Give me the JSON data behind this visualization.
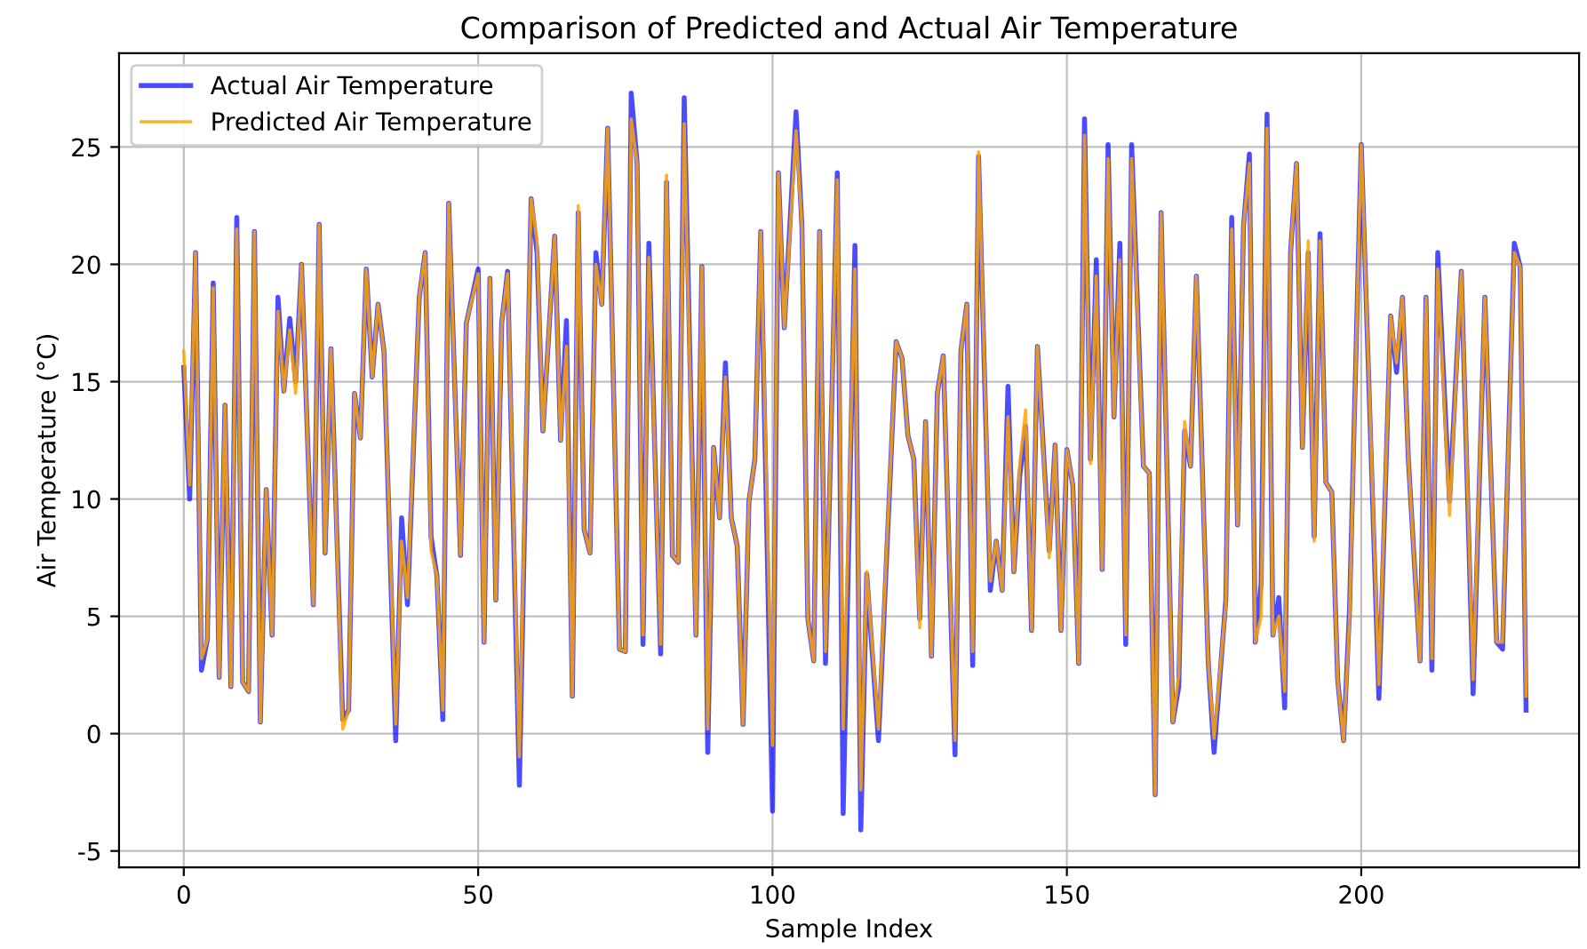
{
  "chart_data": {
    "type": "line",
    "title": "Comparison of Predicted and Actual Air Temperature",
    "xlabel": "Sample Index",
    "ylabel": "Air Temperature (°C)",
    "xlim": [
      -11,
      237
    ],
    "ylim": [
      -5.7,
      29.0
    ],
    "xticks": [
      0,
      50,
      100,
      150,
      200
    ],
    "yticks": [
      -5,
      0,
      5,
      10,
      15,
      20,
      25
    ],
    "grid": true,
    "legend": "top left",
    "line_style": "solid",
    "series": [
      {
        "name": "Actual Air Temperature",
        "color": "#0000ff",
        "x": [
          0,
          1,
          2,
          3,
          4,
          5,
          6,
          7,
          8,
          9,
          10,
          11,
          12,
          13,
          14,
          15,
          16,
          17,
          18,
          19,
          20,
          22,
          23,
          24,
          25,
          27,
          28,
          29,
          30,
          31,
          32,
          33,
          34,
          36,
          37,
          38,
          40,
          41,
          42,
          43,
          44,
          45,
          47,
          48,
          50,
          51,
          52,
          53,
          54,
          55,
          57,
          59,
          60,
          61,
          63,
          64,
          65,
          66,
          67,
          68,
          69,
          70,
          71,
          72,
          74,
          75,
          76,
          77,
          78,
          79,
          81,
          82,
          83,
          84,
          85,
          87,
          88,
          89,
          90,
          91,
          92,
          93,
          94,
          95,
          96,
          97,
          98,
          100,
          101,
          102,
          104,
          105,
          106,
          107,
          108,
          109,
          111,
          112,
          114,
          115,
          116,
          118,
          121,
          122,
          123,
          124,
          125,
          126,
          127,
          128,
          129,
          131,
          132,
          133,
          134,
          135,
          137,
          138,
          139,
          140,
          141,
          142,
          143,
          144,
          145,
          147,
          148,
          149,
          150,
          151,
          152,
          153,
          154,
          155,
          156,
          157,
          158,
          159,
          160,
          161,
          163,
          164,
          165,
          166,
          168,
          169,
          170,
          171,
          172,
          174,
          175,
          177,
          178,
          179,
          180,
          181,
          182,
          183,
          184,
          185,
          186,
          187,
          188,
          189,
          190,
          191,
          192,
          193,
          194,
          195,
          196,
          197,
          198,
          200,
          203,
          205,
          206,
          207,
          208,
          210,
          211,
          212,
          213,
          215,
          217,
          219,
          221,
          223,
          224,
          226,
          227,
          228
        ],
        "values": [
          15.6,
          10,
          20.5,
          2.7,
          4,
          19.2,
          2.4,
          14,
          2.0,
          22,
          2.2,
          1.8,
          21.4,
          0.5,
          10.4,
          4.2,
          18.6,
          14.6,
          17.7,
          15,
          20,
          5.5,
          21.7,
          7.7,
          16.4,
          0.6,
          1.0,
          14.5,
          12.6,
          19.8,
          15.2,
          18.3,
          16.3,
          -0.3,
          9.2,
          5.5,
          18.6,
          20.5,
          8.4,
          6.7,
          0.6,
          22.6,
          7.6,
          17.5,
          19.8,
          3.9,
          19.4,
          5.7,
          17.5,
          19.7,
          -2.2,
          22.8,
          20.5,
          12.9,
          21.2,
          12.5,
          17.6,
          1.6,
          22.2,
          8.7,
          7.7,
          20.5,
          18.3,
          25.8,
          3.6,
          3.5,
          27.3,
          24.3,
          3.8,
          20.9,
          3.4,
          23.5,
          7.6,
          7.3,
          27.1,
          4.2,
          19.9,
          -0.8,
          12.2,
          9.2,
          15.8,
          9.2,
          8.0,
          0.4,
          9.9,
          11.7,
          21.4,
          -3.3,
          23.9,
          17.3,
          26.5,
          21.6,
          4.9,
          3.1,
          21.4,
          3.0,
          23.9,
          -3.4,
          20.8,
          -4.1,
          6.8,
          -0.3,
          16.7,
          16.0,
          12.7,
          11.7,
          4.9,
          13.3,
          3.3,
          14.5,
          16.1,
          -0.9,
          16.3,
          18.3,
          2.9,
          24.6,
          6.1,
          8.2,
          6.1,
          14.8,
          6.9,
          11.0,
          13.1,
          4.4,
          16.5,
          7.8,
          12.3,
          4.4,
          12.1,
          10.6,
          3.0,
          26.2,
          11.7,
          20.2,
          7.0,
          25.1,
          13.5,
          20.9,
          3.8,
          25.1,
          11.4,
          11.1,
          -2.6,
          22.2,
          0.5,
          2.0,
          12.9,
          11.4,
          19.5,
          3.1,
          -0.8,
          5.7,
          22.0,
          8.9,
          21.6,
          24.7,
          3.9,
          6.4,
          26.4,
          4.2,
          5.8,
          1.1,
          20.5,
          24.3,
          12.2,
          20.5,
          8.4,
          21.3,
          10.7,
          10.3,
          2.3,
          -0.3,
          5.2,
          25.1,
          1.5,
          17.8,
          15.4,
          18.6,
          11.7,
          3.1,
          18.6,
          2.7,
          20.5,
          9.9,
          19.7,
          1.7,
          18.6,
          3.9,
          3.6,
          20.9,
          19.9,
          1.0
        ]
      },
      {
        "name": "Predicted Air Temperature",
        "color": "#ffa500",
        "x": [
          0,
          1,
          2,
          3,
          4,
          5,
          6,
          7,
          8,
          9,
          10,
          11,
          12,
          13,
          14,
          15,
          16,
          17,
          18,
          19,
          20,
          22,
          23,
          24,
          25,
          27,
          28,
          29,
          30,
          31,
          32,
          33,
          34,
          36,
          37,
          38,
          40,
          41,
          42,
          43,
          44,
          45,
          47,
          48,
          50,
          51,
          52,
          53,
          54,
          55,
          57,
          59,
          60,
          61,
          63,
          64,
          65,
          66,
          67,
          68,
          69,
          70,
          71,
          72,
          74,
          75,
          76,
          77,
          78,
          79,
          81,
          82,
          83,
          84,
          85,
          87,
          88,
          89,
          90,
          91,
          92,
          93,
          94,
          95,
          96,
          97,
          98,
          100,
          101,
          102,
          104,
          105,
          106,
          107,
          108,
          109,
          111,
          112,
          114,
          115,
          116,
          118,
          121,
          122,
          123,
          124,
          125,
          126,
          127,
          128,
          129,
          131,
          132,
          133,
          134,
          135,
          137,
          138,
          139,
          140,
          141,
          142,
          143,
          144,
          145,
          147,
          148,
          149,
          150,
          151,
          152,
          153,
          154,
          155,
          156,
          157,
          158,
          159,
          160,
          161,
          163,
          164,
          165,
          166,
          168,
          169,
          170,
          171,
          172,
          174,
          175,
          177,
          178,
          179,
          180,
          181,
          182,
          183,
          184,
          185,
          186,
          187,
          188,
          189,
          190,
          191,
          192,
          193,
          194,
          195,
          196,
          197,
          198,
          200,
          203,
          205,
          206,
          207,
          208,
          210,
          211,
          212,
          213,
          215,
          217,
          219,
          221,
          223,
          224,
          226,
          227,
          228
        ],
        "values": [
          16.3,
          10.6,
          20.5,
          3.2,
          4,
          19.0,
          2.4,
          14,
          2.0,
          21.5,
          2.2,
          1.8,
          21.4,
          0.5,
          10.4,
          4.2,
          18.0,
          14.6,
          17.2,
          14.5,
          20,
          5.5,
          21.7,
          7.7,
          16.4,
          0.2,
          1.0,
          14.5,
          12.6,
          19.8,
          15.2,
          18.3,
          16.3,
          0.4,
          8.2,
          5.8,
          18.6,
          20.5,
          7.8,
          6.7,
          1.0,
          22.6,
          7.6,
          17.5,
          19.6,
          3.9,
          19.4,
          5.7,
          17.5,
          19.6,
          -1.0,
          22.8,
          21.0,
          12.9,
          21.2,
          12.5,
          16.5,
          1.6,
          22.5,
          8.7,
          7.7,
          20.0,
          18.3,
          25.8,
          3.6,
          3.5,
          26.2,
          24.3,
          4.2,
          20.3,
          3.8,
          23.8,
          7.6,
          7.3,
          26.0,
          4.2,
          19.9,
          0.2,
          12.2,
          9.2,
          15.2,
          9.2,
          8.0,
          0.4,
          9.9,
          11.7,
          21.4,
          -0.5,
          23.9,
          17.3,
          25.7,
          21.6,
          4.9,
          3.1,
          21.4,
          3.5,
          23.6,
          0.2,
          19.8,
          -2.4,
          6.9,
          0.2,
          16.7,
          16.0,
          12.7,
          11.7,
          4.5,
          13.3,
          3.3,
          14.5,
          16.1,
          -0.3,
          16.3,
          18.3,
          3.5,
          24.8,
          6.5,
          8.2,
          6.1,
          13.5,
          6.9,
          11.5,
          13.8,
          4.4,
          16.5,
          7.5,
          12.3,
          4.4,
          12.1,
          10.6,
          3.0,
          25.5,
          11.5,
          19.5,
          7.0,
          24.5,
          13.5,
          20.2,
          4.2,
          24.5,
          11.4,
          11.1,
          -2.6,
          22.2,
          0.5,
          2.5,
          13.3,
          11.4,
          19.5,
          3.1,
          -0.2,
          5.5,
          21.5,
          8.9,
          21.6,
          24.3,
          3.9,
          5.0,
          25.8,
          4.2,
          5.0,
          1.8,
          20.5,
          24.3,
          12.2,
          21.0,
          8.2,
          21.0,
          10.7,
          10.3,
          2.3,
          -0.3,
          4.8,
          25.1,
          2.1,
          17.8,
          15.8,
          18.6,
          11.7,
          3.1,
          18.6,
          3.2,
          19.8,
          9.3,
          19.7,
          2.3,
          18.6,
          3.9,
          3.9,
          20.5,
          19.9,
          1.6
        ]
      }
    ]
  }
}
